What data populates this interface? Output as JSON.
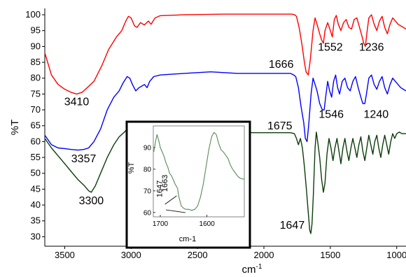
{
  "chart_data": {
    "type": "line",
    "xlabel": "cm",
    "xlabel_superscript": "-1",
    "ylabel": "%T",
    "xlim": [
      3650,
      930
    ],
    "ylim": [
      27,
      102
    ],
    "x_ticks": [
      3500,
      3000,
      2500,
      2000,
      1500,
      1000
    ],
    "x_tick_labels": [
      "3500",
      "3000",
      "2500",
      "2000",
      "1500",
      "1000"
    ],
    "y_ticks": [
      30,
      35,
      40,
      45,
      50,
      55,
      60,
      65,
      70,
      75,
      80,
      85,
      90,
      95,
      100
    ],
    "y_tick_labels": [
      "30",
      "35",
      "40",
      "45",
      "50",
      "55",
      "60",
      "65",
      "70",
      "75",
      "80",
      "85",
      "90",
      "95",
      "100"
    ],
    "grid": false,
    "series": [
      {
        "color": "#ff0000",
        "points": [
          [
            3650,
            88
          ],
          [
            3600,
            81
          ],
          [
            3550,
            78
          ],
          [
            3500,
            76.5
          ],
          [
            3450,
            75.5
          ],
          [
            3410,
            75
          ],
          [
            3370,
            75.5
          ],
          [
            3330,
            77
          ],
          [
            3280,
            79
          ],
          [
            3220,
            84
          ],
          [
            3170,
            89
          ],
          [
            3110,
            93
          ],
          [
            3070,
            95
          ],
          [
            3040,
            98
          ],
          [
            3020,
            99.5
          ],
          [
            3000,
            99
          ],
          [
            2975,
            96.5
          ],
          [
            2955,
            96
          ],
          [
            2930,
            97.5
          ],
          [
            2900,
            96.8
          ],
          [
            2870,
            98
          ],
          [
            2850,
            97
          ],
          [
            2820,
            99
          ],
          [
            2780,
            99.7
          ],
          [
            2600,
            100
          ],
          [
            2300,
            100.2
          ],
          [
            2000,
            100.2
          ],
          [
            1790,
            100.2
          ],
          [
            1770,
            100
          ],
          [
            1755,
            99.5
          ],
          [
            1735,
            96
          ],
          [
            1715,
            91
          ],
          [
            1695,
            85
          ],
          [
            1683,
            82
          ],
          [
            1666,
            81
          ],
          [
            1650,
            86
          ],
          [
            1630,
            95
          ],
          [
            1615,
            99
          ],
          [
            1600,
            97
          ],
          [
            1580,
            94
          ],
          [
            1565,
            92
          ],
          [
            1552,
            91
          ],
          [
            1540,
            95
          ],
          [
            1520,
            97.5
          ],
          [
            1500,
            95
          ],
          [
            1485,
            93
          ],
          [
            1470,
            98.5
          ],
          [
            1455,
            99.8
          ],
          [
            1440,
            97
          ],
          [
            1420,
            95
          ],
          [
            1400,
            97.5
          ],
          [
            1380,
            98.5
          ],
          [
            1360,
            96
          ],
          [
            1340,
            95.5
          ],
          [
            1320,
            98.5
          ],
          [
            1300,
            99
          ],
          [
            1280,
            96
          ],
          [
            1260,
            93
          ],
          [
            1248,
            91
          ],
          [
            1236,
            90
          ],
          [
            1225,
            94
          ],
          [
            1210,
            99
          ],
          [
            1190,
            100
          ],
          [
            1170,
            97
          ],
          [
            1150,
            95
          ],
          [
            1130,
            98
          ],
          [
            1110,
            99.5
          ],
          [
            1090,
            96
          ],
          [
            1070,
            94
          ],
          [
            1050,
            97
          ],
          [
            1030,
            99
          ],
          [
            1010,
            98
          ],
          [
            990,
            97
          ],
          [
            970,
            96.5
          ],
          [
            950,
            96
          ],
          [
            930,
            95.5
          ]
        ]
      },
      {
        "color": "#0000ff",
        "points": [
          [
            3650,
            62
          ],
          [
            3600,
            59
          ],
          [
            3550,
            58
          ],
          [
            3500,
            57.8
          ],
          [
            3450,
            57.5
          ],
          [
            3400,
            57.3
          ],
          [
            3357,
            57.5
          ],
          [
            3320,
            58
          ],
          [
            3280,
            60
          ],
          [
            3230,
            64
          ],
          [
            3180,
            70
          ],
          [
            3130,
            74
          ],
          [
            3090,
            76
          ],
          [
            3060,
            78.5
          ],
          [
            3030,
            80.5
          ],
          [
            3010,
            80
          ],
          [
            2990,
            78
          ],
          [
            2965,
            76
          ],
          [
            2940,
            77
          ],
          [
            2920,
            77.5
          ],
          [
            2900,
            78
          ],
          [
            2880,
            77
          ],
          [
            2860,
            79
          ],
          [
            2830,
            80.5
          ],
          [
            2780,
            81
          ],
          [
            2600,
            81.5
          ],
          [
            2400,
            82
          ],
          [
            2200,
            81.5
          ],
          [
            2000,
            81.5
          ],
          [
            1800,
            81.5
          ],
          [
            1775,
            81
          ],
          [
            1760,
            80.5
          ],
          [
            1740,
            77
          ],
          [
            1720,
            71
          ],
          [
            1700,
            66
          ],
          [
            1688,
            61
          ],
          [
            1675,
            60
          ],
          [
            1663,
            65
          ],
          [
            1645,
            75
          ],
          [
            1630,
            80
          ],
          [
            1615,
            78
          ],
          [
            1600,
            76
          ],
          [
            1580,
            72
          ],
          [
            1560,
            70
          ],
          [
            1546,
            70
          ],
          [
            1535,
            74
          ],
          [
            1520,
            79
          ],
          [
            1505,
            76
          ],
          [
            1490,
            74
          ],
          [
            1475,
            79
          ],
          [
            1460,
            81
          ],
          [
            1445,
            77
          ],
          [
            1430,
            75
          ],
          [
            1410,
            79
          ],
          [
            1390,
            80
          ],
          [
            1370,
            77
          ],
          [
            1350,
            76
          ],
          [
            1330,
            79
          ],
          [
            1310,
            80.5
          ],
          [
            1290,
            77
          ],
          [
            1270,
            74
          ],
          [
            1255,
            72
          ],
          [
            1240,
            72
          ],
          [
            1228,
            75
          ],
          [
            1210,
            80
          ],
          [
            1190,
            81
          ],
          [
            1170,
            78
          ],
          [
            1150,
            76.5
          ],
          [
            1130,
            79
          ],
          [
            1110,
            80.5
          ],
          [
            1090,
            77
          ],
          [
            1070,
            75
          ],
          [
            1050,
            78
          ],
          [
            1030,
            80
          ],
          [
            1010,
            79
          ],
          [
            990,
            78
          ],
          [
            970,
            77
          ],
          [
            950,
            76.5
          ],
          [
            930,
            76
          ]
        ]
      },
      {
        "color": "#0b3d0b",
        "points": [
          [
            3650,
            61
          ],
          [
            3600,
            58
          ],
          [
            3550,
            55.5
          ],
          [
            3500,
            53
          ],
          [
            3450,
            50.5
          ],
          [
            3400,
            48
          ],
          [
            3350,
            46
          ],
          [
            3320,
            44.5
          ],
          [
            3300,
            44
          ],
          [
            3270,
            46
          ],
          [
            3230,
            50
          ],
          [
            3180,
            55
          ],
          [
            3130,
            59
          ],
          [
            3090,
            61.5
          ],
          [
            3050,
            63
          ],
          [
            3020,
            64.5
          ],
          [
            3000,
            63.5
          ],
          [
            2980,
            62
          ],
          [
            2960,
            61
          ],
          [
            2940,
            61.5
          ],
          [
            2920,
            62
          ],
          [
            2900,
            61.5
          ],
          [
            2880,
            62
          ],
          [
            2850,
            62.5
          ],
          [
            2800,
            63
          ],
          [
            2600,
            63
          ],
          [
            2400,
            62.8
          ],
          [
            2200,
            62.8
          ],
          [
            2000,
            62.8
          ],
          [
            1800,
            62.8
          ],
          [
            1770,
            62.5
          ],
          [
            1755,
            61
          ],
          [
            1740,
            59
          ],
          [
            1725,
            61
          ],
          [
            1710,
            58
          ],
          [
            1695,
            52
          ],
          [
            1680,
            45
          ],
          [
            1665,
            37
          ],
          [
            1655,
            32
          ],
          [
            1647,
            31
          ],
          [
            1638,
            34
          ],
          [
            1628,
            43
          ],
          [
            1615,
            58
          ],
          [
            1605,
            63
          ],
          [
            1595,
            60
          ],
          [
            1580,
            55
          ],
          [
            1565,
            48
          ],
          [
            1552,
            44
          ],
          [
            1540,
            47
          ],
          [
            1525,
            56
          ],
          [
            1510,
            61
          ],
          [
            1495,
            58
          ],
          [
            1480,
            54
          ],
          [
            1465,
            58
          ],
          [
            1450,
            61
          ],
          [
            1435,
            57
          ],
          [
            1420,
            53
          ],
          [
            1405,
            58
          ],
          [
            1390,
            61
          ],
          [
            1375,
            57
          ],
          [
            1360,
            54
          ],
          [
            1345,
            58
          ],
          [
            1330,
            61
          ],
          [
            1315,
            58
          ],
          [
            1300,
            55
          ],
          [
            1285,
            59
          ],
          [
            1270,
            61.5
          ],
          [
            1255,
            57
          ],
          [
            1240,
            54
          ],
          [
            1225,
            58
          ],
          [
            1210,
            62
          ],
          [
            1195,
            59
          ],
          [
            1180,
            56
          ],
          [
            1165,
            60
          ],
          [
            1150,
            62
          ],
          [
            1135,
            58
          ],
          [
            1120,
            55
          ],
          [
            1105,
            59
          ],
          [
            1090,
            62
          ],
          [
            1075,
            59
          ],
          [
            1060,
            56
          ],
          [
            1045,
            60
          ],
          [
            1030,
            62.5
          ],
          [
            1015,
            61
          ],
          [
            1000,
            62.5
          ],
          [
            980,
            63
          ],
          [
            960,
            62.5
          ],
          [
            930,
            62.5
          ]
        ]
      }
    ],
    "annotations": [
      {
        "text": "3410",
        "x": 3410,
        "y": 71.5
      },
      {
        "text": "3357",
        "x": 3357,
        "y": 53.5
      },
      {
        "text": "3300",
        "x": 3300,
        "y": 40.2
      },
      {
        "text": "1666",
        "x": 1870,
        "y": 83.3
      },
      {
        "text": "1552",
        "x": 1500,
        "y": 88.7
      },
      {
        "text": "1236",
        "x": 1190,
        "y": 88.7
      },
      {
        "text": "1675",
        "x": 1880,
        "y": 63.8
      },
      {
        "text": "1546",
        "x": 1493,
        "y": 67.5
      },
      {
        "text": "1240",
        "x": 1155,
        "y": 67.5
      },
      {
        "text": "1647",
        "x": 1787,
        "y": 32.5
      }
    ],
    "inset": {
      "type": "line",
      "xlabel": "cm-1",
      "ylabel": "%T",
      "xlim": [
        1715,
        1520
      ],
      "ylim": [
        58,
        100
      ],
      "x_ticks": [
        1700,
        1600
      ],
      "x_tick_labels": [
        "1700",
        "1600"
      ],
      "y_ticks": [
        60,
        70,
        80,
        90
      ],
      "y_tick_labels": [
        "60",
        "70",
        "80",
        "90"
      ],
      "color": "#5a8a5a",
      "points": [
        [
          1714,
          88
        ],
        [
          1710,
          93
        ],
        [
          1707,
          96
        ],
        [
          1703,
          93
        ],
        [
          1700,
          90
        ],
        [
          1696,
          88
        ],
        [
          1692,
          86
        ],
        [
          1688,
          83
        ],
        [
          1684,
          81
        ],
        [
          1680,
          78
        ],
        [
          1676,
          77
        ],
        [
          1672,
          75
        ],
        [
          1668,
          73
        ],
        [
          1665,
          72
        ],
        [
          1663,
          71
        ],
        [
          1660,
          67
        ],
        [
          1655,
          63
        ],
        [
          1650,
          62
        ],
        [
          1646,
          61.5
        ],
        [
          1640,
          61.5
        ],
        [
          1632,
          61
        ],
        [
          1626,
          61.5
        ],
        [
          1620,
          63
        ],
        [
          1614,
          67
        ],
        [
          1608,
          73
        ],
        [
          1602,
          81
        ],
        [
          1596,
          89
        ],
        [
          1590,
          95
        ],
        [
          1585,
          97
        ],
        [
          1580,
          96
        ],
        [
          1575,
          92
        ],
        [
          1570,
          89
        ],
        [
          1565,
          88
        ],
        [
          1560,
          86.5
        ],
        [
          1555,
          85
        ],
        [
          1550,
          82
        ],
        [
          1545,
          80
        ],
        [
          1540,
          78.5
        ],
        [
          1535,
          77
        ],
        [
          1530,
          76
        ],
        [
          1525,
          75.5
        ],
        [
          1520,
          75.5
        ]
      ],
      "annotations": [
        {
          "text": "1647",
          "x": 1696
        },
        {
          "text": "1663",
          "x": 1685
        }
      ]
    }
  }
}
